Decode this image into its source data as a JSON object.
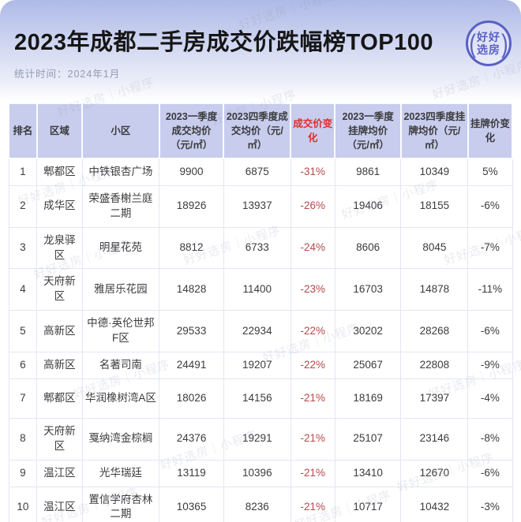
{
  "header": {
    "title": "2023年成都二手房成交价跌幅榜TOP100",
    "stat_time": "统计时间：2024年1月",
    "logo_line1": "好好",
    "logo_line2": "选房",
    "logo_paren_left": "(",
    "logo_paren_right": ")"
  },
  "watermark_text": "好好选房｜小程序",
  "colors": {
    "grad_top": "#aeb9e6",
    "header_bg": "#c8cdee",
    "accent_red_header": "#e12b2b",
    "accent_red_value": "#b34a4c",
    "border_color": "#e3e6f5",
    "logo_blue": "#5a60c4"
  },
  "chart_data": {
    "type": "table",
    "title": "2023年成都二手房成交价跌幅榜TOP100",
    "subtitle": "统计时间：2024年1月",
    "columns": [
      "排名",
      "区域",
      "小区",
      "2023一季度成交均价（元/㎡）",
      "2023四季度成交均价（元/㎡）",
      "成交价变化",
      "2023一季度挂牌均价（元/㎡）",
      "2023四季度挂牌均价（元/㎡）",
      "挂牌价变化"
    ],
    "rows": [
      [
        "1",
        "郫都区",
        "中铁银杏广场",
        "9900",
        "6875",
        "-31%",
        "9861",
        "10349",
        "5%"
      ],
      [
        "2",
        "成华区",
        "荣盛香榭兰庭二期",
        "18926",
        "13937",
        "-26%",
        "19406",
        "18155",
        "-6%"
      ],
      [
        "3",
        "龙泉驿区",
        "明星花苑",
        "8812",
        "6733",
        "-24%",
        "8606",
        "8045",
        "-7%"
      ],
      [
        "4",
        "天府新区",
        "雅居乐花园",
        "14828",
        "11400",
        "-23%",
        "16703",
        "14878",
        "-11%"
      ],
      [
        "5",
        "高新区",
        "中德·英伦世邦F区",
        "29533",
        "22934",
        "-22%",
        "30202",
        "28268",
        "-6%"
      ],
      [
        "6",
        "高新区",
        "名著司南",
        "24491",
        "19207",
        "-22%",
        "25067",
        "22808",
        "-9%"
      ],
      [
        "7",
        "郫都区",
        "华润橡树湾A区",
        "18026",
        "14156",
        "-21%",
        "18169",
        "17397",
        "-4%"
      ],
      [
        "8",
        "天府新区",
        "戛纳湾金棕榈",
        "24376",
        "19291",
        "-21%",
        "25107",
        "23146",
        "-8%"
      ],
      [
        "9",
        "温江区",
        "光华瑞廷",
        "13119",
        "10396",
        "-21%",
        "13410",
        "12670",
        "-6%"
      ],
      [
        "10",
        "温江区",
        "置信学府杏林二期",
        "10365",
        "8236",
        "-21%",
        "10717",
        "10432",
        "-3%"
      ]
    ]
  }
}
